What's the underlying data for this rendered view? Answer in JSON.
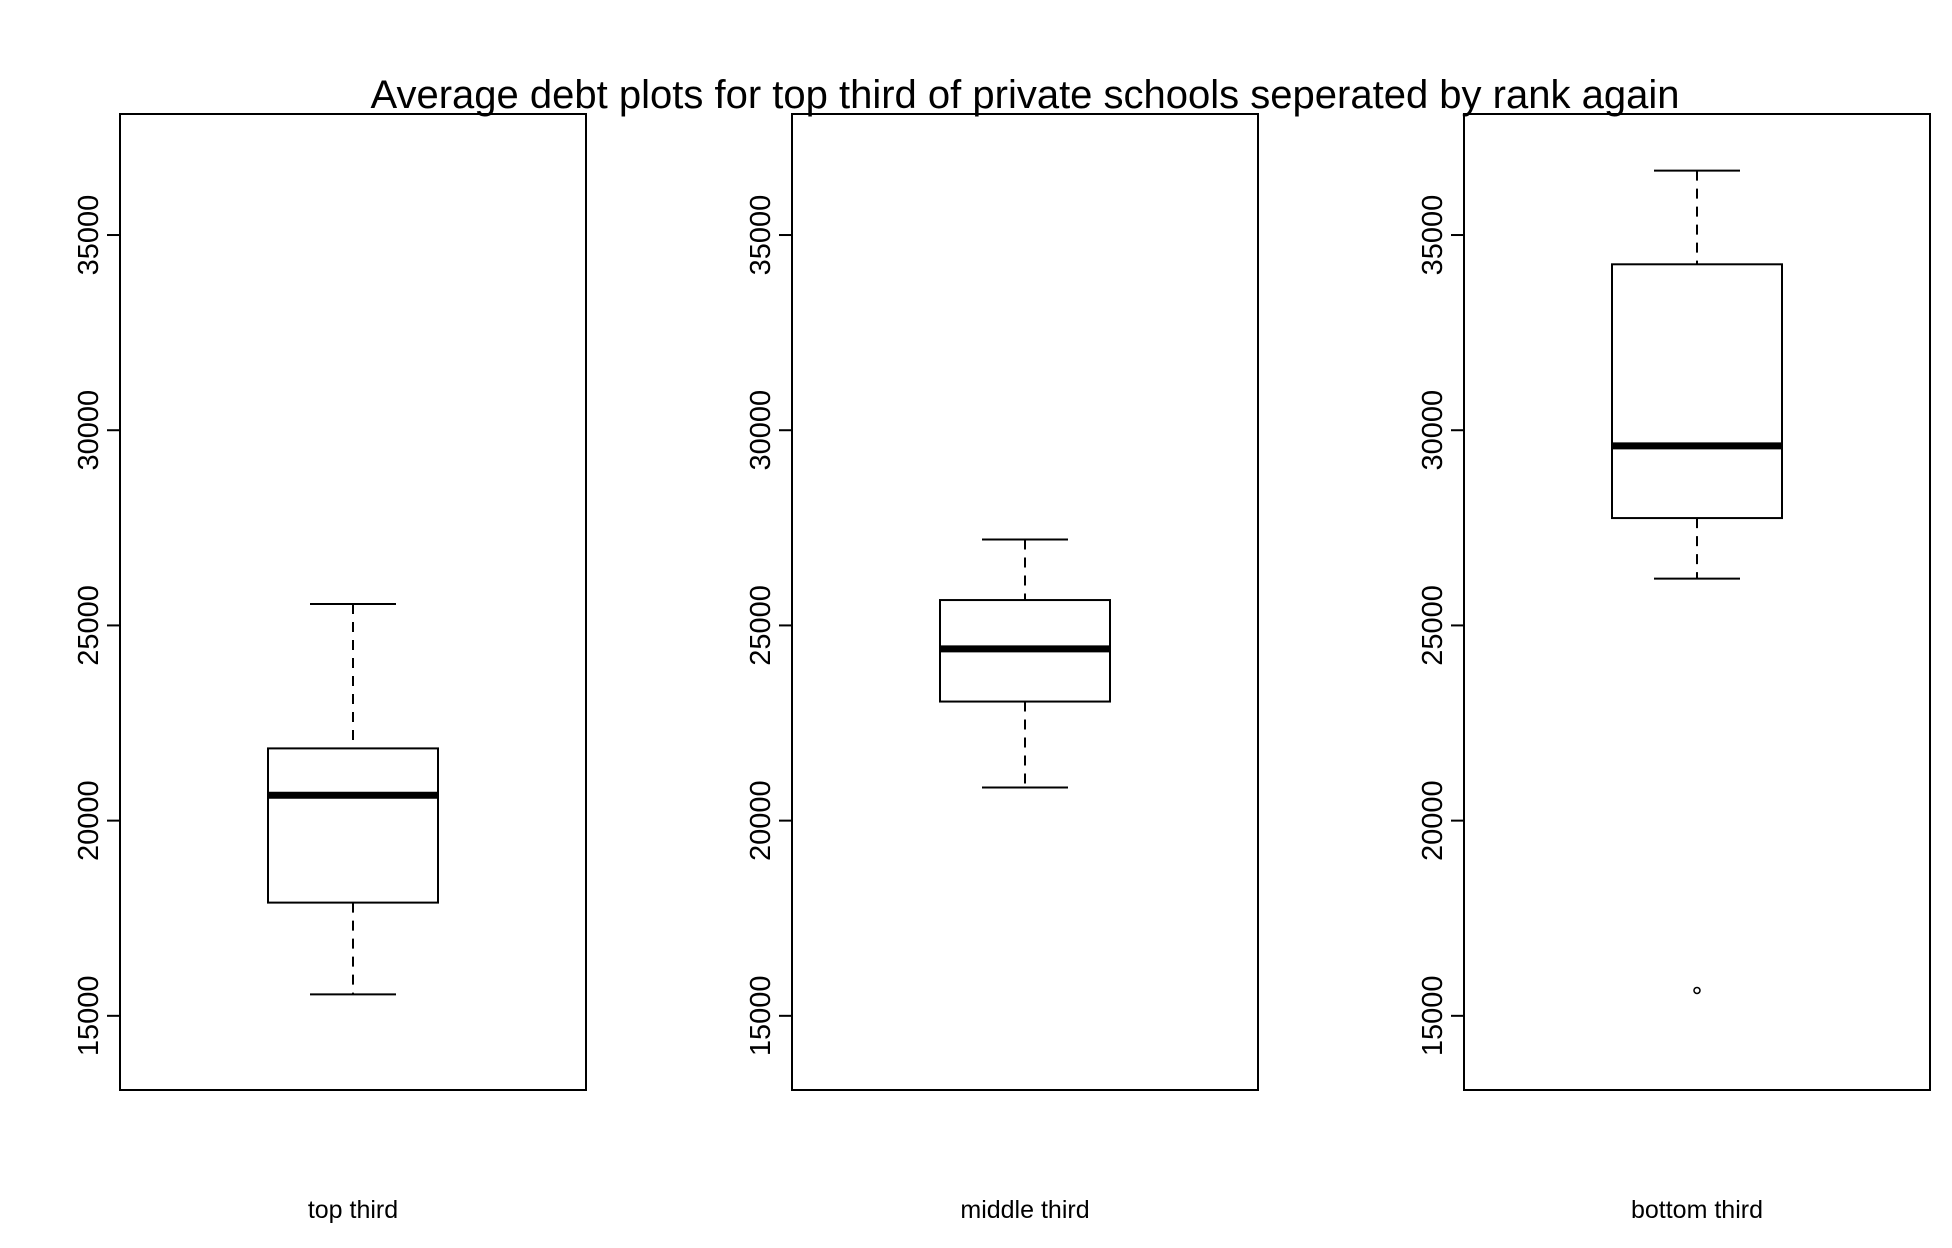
{
  "chart_data": {
    "type": "boxplot",
    "title": "Average debt plots for top third of private schools seperated by rank again",
    "grid": false,
    "legend": "none",
    "y_ticks": [
      15000,
      20000,
      25000,
      30000,
      35000
    ],
    "panels": [
      {
        "xlabel": "top third",
        "ylim": [
          13100,
          38100
        ],
        "box": {
          "whisker_low": 15550,
          "q1": 17900,
          "median": 20650,
          "q3": 21850,
          "whisker_high": 25550
        },
        "outliers": []
      },
      {
        "xlabel": "middle third",
        "ylim": [
          13100,
          38100
        ],
        "box": {
          "whisker_low": 20850,
          "q1": 23050,
          "median": 24400,
          "q3": 25650,
          "whisker_high": 27200
        },
        "outliers": []
      },
      {
        "xlabel": "bottom third",
        "ylim": [
          13100,
          38100
        ],
        "box": {
          "whisker_low": 26200,
          "q1": 27750,
          "median": 29600,
          "q3": 34250,
          "whisker_high": 36650
        },
        "outliers": [
          15650
        ]
      }
    ]
  }
}
